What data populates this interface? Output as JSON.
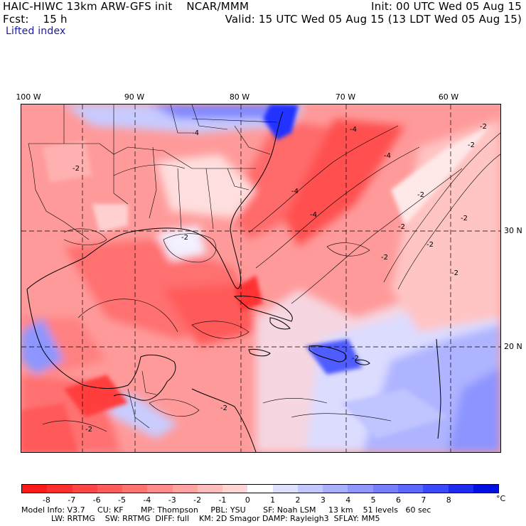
{
  "header": {
    "title": "HAIC-HIWC 13km ARW-GFS init    NCAR/MMM",
    "init": "Init: 00 UTC Wed 05 Aug 15",
    "fcst": "Fcst:    15 h",
    "valid": "Valid: 15 UTC Wed 05 Aug 15 (13 LDT Wed 05 Aug 15)",
    "field": "Lifted index"
  },
  "map": {
    "lon_labels": [
      "100 W",
      "90 W",
      "80 W",
      "70 W",
      "60 W"
    ],
    "lat_labels": [
      "30 N",
      "20 N"
    ],
    "contour_labels": [
      "-4",
      "-4",
      "-4",
      "-4",
      "-4",
      "-2",
      "-2",
      "-2",
      "-2",
      "-2",
      "-2",
      "-2",
      "-2",
      "-2",
      "-2",
      "-2",
      "-2",
      "-2"
    ]
  },
  "colorbar": {
    "tick_labels": [
      "-8",
      "-7",
      "-6",
      "-5",
      "-4",
      "-3",
      "-2",
      "-1",
      "0",
      "1",
      "2",
      "3",
      "4",
      "5",
      "6",
      "7",
      "8"
    ],
    "unit": "°C",
    "colors": [
      "#ff1a1a",
      "#ff2e2e",
      "#ff4545",
      "#ff5c5c",
      "#ff7373",
      "#ff8c8c",
      "#ffa3a3",
      "#ffbcbc",
      "#ffd6d6",
      "#ffffff",
      "#dde0ff",
      "#c4c8ff",
      "#aab0ff",
      "#9098ff",
      "#7680ff",
      "#5c68ff",
      "#3a48ff",
      "#1e2cf0",
      "#0010e0"
    ]
  },
  "footer": {
    "line1": "Model Info: V3.7     CU: KF       MP: Thompson     PBL: YSU       SF: Noah LSM     13 km    51 levels   60 sec",
    "line2": "            LW: RRTMG    SW: RRTMG  DIFF: full    KM: 2D Smagor DAMP: Rayleigh3  SFLAY: MM5"
  }
}
